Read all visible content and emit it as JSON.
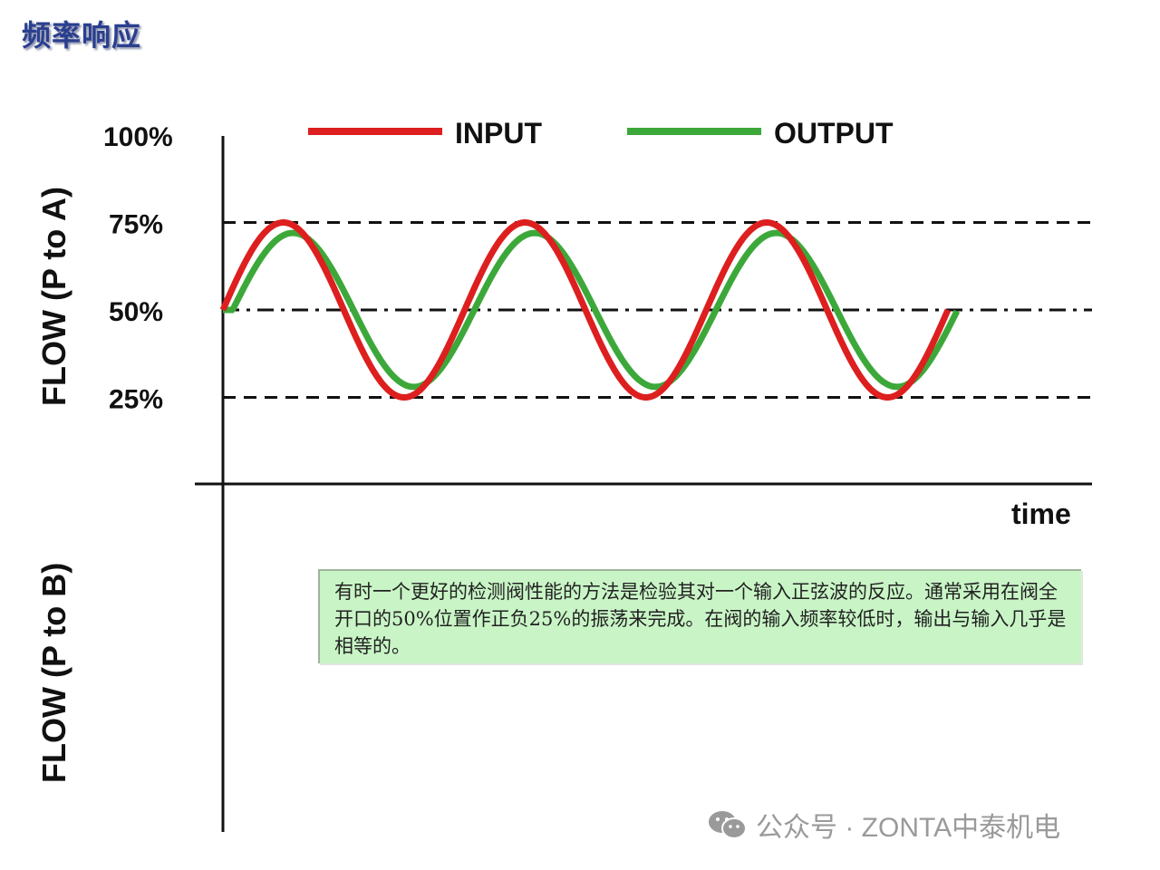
{
  "title": "频率响应",
  "note": "有时一个更好的检测阀性能的方法是检验其对一个输入正弦波的反应。通常采用在阀全开口的50%位置作正负25%的振荡来完成。在阀的输入频率较低时，输出与输入几乎是相等的。",
  "watermark": "公众号 · ZONTA中泰机电",
  "chart_data": {
    "type": "line",
    "title": "",
    "xlabel": "time",
    "ylabel_upper": "FLOW (P to A)",
    "ylabel_lower": "FLOW (P to B)",
    "y_ticks": [
      "100%",
      "75%",
      "50%",
      "25%"
    ],
    "y_tick_values": [
      100,
      75,
      50,
      25
    ],
    "ylim": [
      0,
      100
    ],
    "reference_lines": [
      {
        "value": 75,
        "style": "dashed"
      },
      {
        "value": 50,
        "style": "dash-dot"
      },
      {
        "value": 25,
        "style": "dashed"
      }
    ],
    "legend_placement": "top",
    "series": [
      {
        "name": "INPUT",
        "color": "#dd1f1f",
        "form": "sine",
        "center": 50,
        "amplitude": 25,
        "cycles": 3,
        "phase_lag_cycles": 0
      },
      {
        "name": "OUTPUT",
        "color": "#3da83a",
        "form": "sine",
        "center": 50,
        "amplitude": 22,
        "cycles": 3,
        "phase_lag_cycles": 0.04
      }
    ]
  }
}
